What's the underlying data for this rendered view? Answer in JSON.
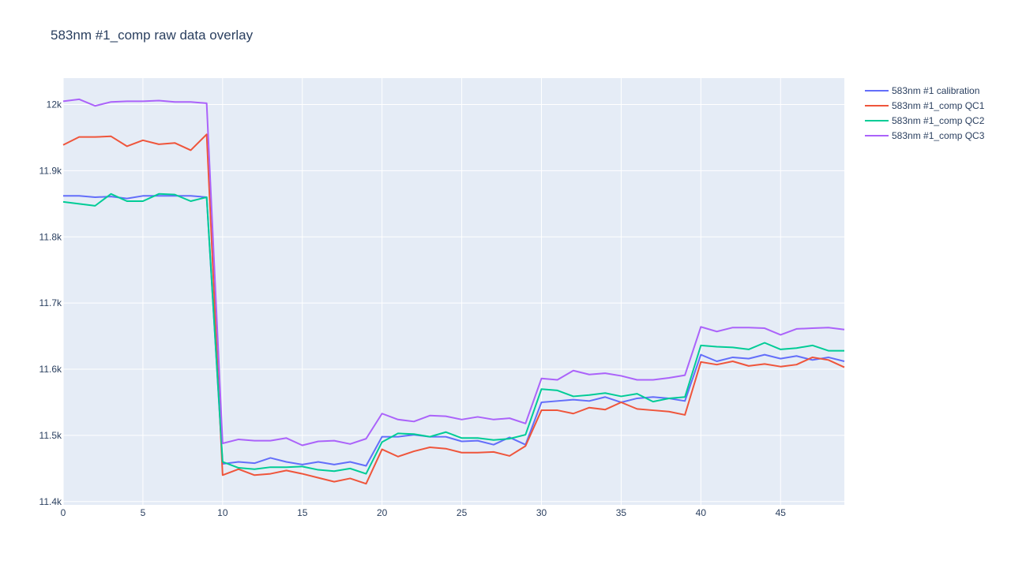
{
  "chart_data": {
    "type": "line",
    "title": "583nm #1_comp raw data overlay",
    "xlabel": "",
    "ylabel": "",
    "xlim": [
      0,
      49
    ],
    "ylim": [
      11395,
      12040
    ],
    "x_ticks": [
      0,
      5,
      10,
      15,
      20,
      25,
      30,
      35,
      40,
      45
    ],
    "x_tick_labels": [
      "0",
      "5",
      "10",
      "15",
      "20",
      "25",
      "30",
      "35",
      "40",
      "45"
    ],
    "y_ticks": [
      11400,
      11500,
      11600,
      11700,
      11800,
      11900,
      12000
    ],
    "y_tick_labels": [
      "11.4k",
      "11.5k",
      "11.6k",
      "11.7k",
      "11.8k",
      "11.9k",
      "12k"
    ],
    "grid": true,
    "legend_position": "top-right",
    "background": "#e5ecf6",
    "x": [
      0,
      1,
      2,
      3,
      4,
      5,
      6,
      7,
      8,
      9,
      10,
      11,
      12,
      13,
      14,
      15,
      16,
      17,
      18,
      19,
      20,
      21,
      22,
      23,
      24,
      25,
      26,
      27,
      28,
      29,
      30,
      31,
      32,
      33,
      34,
      35,
      36,
      37,
      38,
      39,
      40,
      41,
      42,
      43,
      44,
      45,
      46,
      47,
      48,
      49
    ],
    "series": [
      {
        "name": "583nm #1 calibration",
        "color": "#636efa",
        "values": [
          11862,
          11862,
          11860,
          11861,
          11858,
          11862,
          11862,
          11862,
          11862,
          11860,
          11457,
          11460,
          11458,
          11466,
          11460,
          11456,
          11460,
          11456,
          11460,
          11454,
          11498,
          11498,
          11501,
          11498,
          11498,
          11491,
          11492,
          11486,
          11497,
          11486,
          11550,
          11552,
          11554,
          11552,
          11558,
          11550,
          11556,
          11558,
          11556,
          11552,
          11622,
          11612,
          11618,
          11616,
          11622,
          11616,
          11620,
          11614,
          11618,
          11612
        ]
      },
      {
        "name": "583nm #1_comp QC1",
        "color": "#ef553b",
        "values": [
          11939,
          11951,
          11951,
          11952,
          11937,
          11946,
          11940,
          11942,
          11931,
          11955,
          11440,
          11449,
          11440,
          11442,
          11447,
          11442,
          11436,
          11430,
          11435,
          11427,
          11479,
          11468,
          11476,
          11482,
          11480,
          11474,
          11474,
          11475,
          11469,
          11484,
          11538,
          11538,
          11533,
          11542,
          11539,
          11550,
          11540,
          11538,
          11536,
          11531,
          11611,
          11607,
          11612,
          11605,
          11608,
          11604,
          11607,
          11618,
          11614,
          11603
        ]
      },
      {
        "name": "583nm #1_comp QC2",
        "color": "#00cc96",
        "values": [
          11853,
          11850,
          11847,
          11865,
          11854,
          11854,
          11865,
          11864,
          11854,
          11860,
          11460,
          11451,
          11449,
          11452,
          11452,
          11453,
          11448,
          11446,
          11450,
          11442,
          11490,
          11503,
          11502,
          11498,
          11505,
          11496,
          11496,
          11493,
          11495,
          11501,
          11570,
          11568,
          11559,
          11561,
          11564,
          11559,
          11563,
          11551,
          11556,
          11558,
          11636,
          11634,
          11633,
          11630,
          11640,
          11630,
          11632,
          11636,
          11628,
          11628
        ]
      },
      {
        "name": "583nm #1_comp QC3",
        "color": "#ab63fa",
        "values": [
          12005,
          12008,
          11998,
          12004,
          12005,
          12005,
          12006,
          12004,
          12004,
          12002,
          11488,
          11494,
          11492,
          11492,
          11496,
          11485,
          11491,
          11492,
          11487,
          11495,
          11533,
          11524,
          11521,
          11530,
          11529,
          11524,
          11528,
          11524,
          11526,
          11518,
          11586,
          11584,
          11598,
          11592,
          11594,
          11590,
          11584,
          11584,
          11587,
          11591,
          11664,
          11657,
          11663,
          11663,
          11662,
          11652,
          11661,
          11662,
          11663,
          11660
        ]
      }
    ]
  }
}
